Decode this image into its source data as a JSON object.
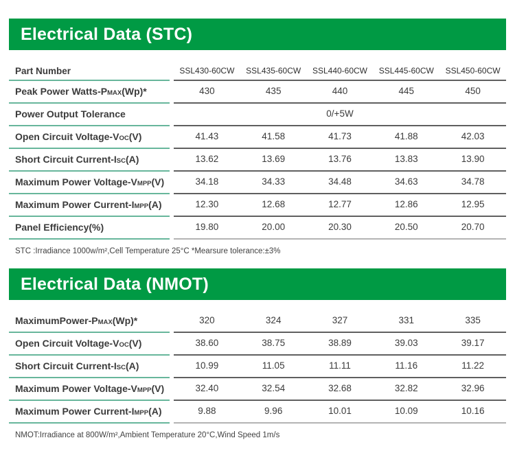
{
  "colors": {
    "banner_green": "#009a44",
    "label_underline_teal": "#67b69b",
    "row_line_dark": "#5f5f5f",
    "table_bottom_line_light": "#b3b3b3",
    "text_dark": "#3b3b3b"
  },
  "stc": {
    "title": "Electrical Data (STC)",
    "part_number_label": "Part Number",
    "columns": [
      "SSL430-60CW",
      "SSL435-60CW",
      "SSL440-60CW",
      "SSL445-60CW",
      "SSL450-60CW"
    ],
    "rows": [
      {
        "label": {
          "pre": "Peak Power Watts-P",
          "sub": "MAX",
          "post": "(Wp)*"
        },
        "values": [
          "430",
          "435",
          "440",
          "445",
          "450"
        ]
      },
      {
        "label": {
          "pre": "Power Output Tolerance",
          "sub": "",
          "post": ""
        },
        "merged_value": "0/+5W"
      },
      {
        "label": {
          "pre": "Open Circuit Voltage-V",
          "sub": "OC",
          "post": "(V)"
        },
        "values": [
          "41.43",
          "41.58",
          "41.73",
          "41.88",
          "42.03"
        ]
      },
      {
        "label": {
          "pre": "Short Circuit Current-I",
          "sub": "SC",
          "post": "(A)"
        },
        "values": [
          "13.62",
          "13.69",
          "13.76",
          "13.83",
          "13.90"
        ]
      },
      {
        "label": {
          "pre": "Maximum Power Voltage-V",
          "sub": "MPP",
          "post": "(V)"
        },
        "values": [
          "34.18",
          "34.33",
          "34.48",
          "34.63",
          "34.78"
        ]
      },
      {
        "label": {
          "pre": "Maximum Power Current-I",
          "sub": "MPP",
          "post": "(A)"
        },
        "values": [
          "12.30",
          "12.68",
          "12.77",
          "12.86",
          "12.95"
        ]
      },
      {
        "label": {
          "pre": "Panel Efficiency(%)",
          "sub": "",
          "post": ""
        },
        "values": [
          "19.80",
          "20.00",
          "20.30",
          "20.50",
          "20.70"
        ]
      }
    ],
    "footnote": "STC :Irradiance 1000w/m²,Cell Temperature 25°C  *Mearsure tolerance:±3%"
  },
  "nmot": {
    "title": "Electrical Data (NMOT)",
    "rows": [
      {
        "label": {
          "pre": "MaximumPower-P",
          "sub": "MAX",
          "post": "(Wp)*"
        },
        "values": [
          "320",
          "324",
          "327",
          "331",
          "335"
        ]
      },
      {
        "label": {
          "pre": "Open Circuit Voltage-V",
          "sub": "OC",
          "post": "(V)"
        },
        "values": [
          "38.60",
          "38.75",
          "38.89",
          "39.03",
          "39.17"
        ]
      },
      {
        "label": {
          "pre": "Short Circuit Current-I",
          "sub": "SC",
          "post": "(A)"
        },
        "values": [
          "10.99",
          "11.05",
          "11.11",
          "11.16",
          "11.22"
        ]
      },
      {
        "label": {
          "pre": "Maximum Power Voltage-V",
          "sub": "MPP",
          "post": "(V)"
        },
        "values": [
          "32.40",
          "32.54",
          "32.68",
          "32.82",
          "32.96"
        ]
      },
      {
        "label": {
          "pre": "Maximum Power Current-I",
          "sub": "MPP",
          "post": "(A)"
        },
        "values": [
          "9.88",
          "9.96",
          "10.01",
          "10.09",
          "10.16"
        ]
      }
    ],
    "footnote": "NMOT:Irradiance at 800W/m²,Ambient Temperature 20°C,Wind Speed 1m/s"
  }
}
